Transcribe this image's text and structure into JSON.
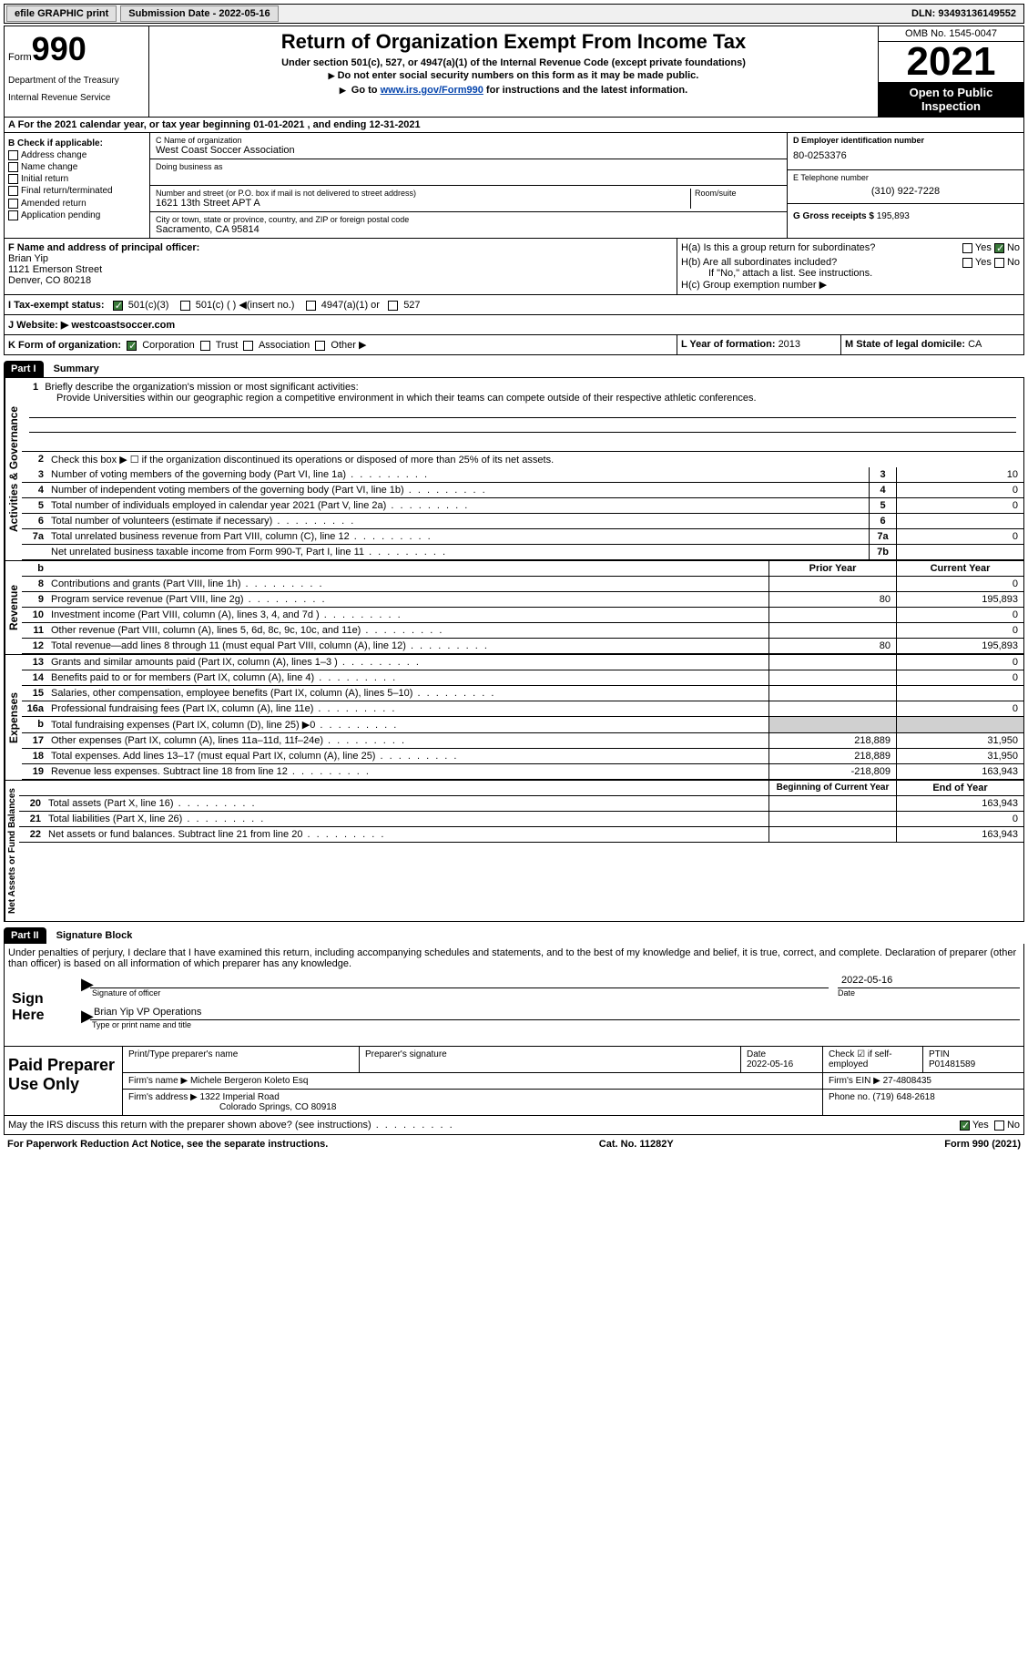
{
  "topbar": {
    "efile": "efile GRAPHIC print",
    "submission_label": "Submission Date - ",
    "submission_date": "2022-05-16",
    "dln_label": "DLN: ",
    "dln": "93493136149552"
  },
  "header": {
    "form_prefix": "Form",
    "form_number": "990",
    "dept": "Department of the Treasury",
    "irs": "Internal Revenue Service",
    "title": "Return of Organization Exempt From Income Tax",
    "subtitle": "Under section 501(c), 527, or 4947(a)(1) of the Internal Revenue Code (except private foundations)",
    "note1": "Do not enter social security numbers on this form as it may be made public.",
    "note2_prefix": "Go to ",
    "note2_link": "www.irs.gov/Form990",
    "note2_suffix": " for instructions and the latest information.",
    "omb": "OMB No. 1545-0047",
    "year": "2021",
    "open_public": "Open to Public Inspection"
  },
  "row_a": {
    "prefix": "A For the 2021 calendar year, or tax year beginning ",
    "begin": "01-01-2021",
    "mid": " , and ending ",
    "end": "12-31-2021"
  },
  "col_b": {
    "header": "B Check if applicable:",
    "opts": [
      "Address change",
      "Name change",
      "Initial return",
      "Final return/terminated",
      "Amended return",
      "Application pending"
    ]
  },
  "col_c": {
    "name_label": "C Name of organization",
    "name": "West Coast Soccer Association",
    "dba_label": "Doing business as",
    "dba": "",
    "street_label": "Number and street (or P.O. box if mail is not delivered to street address)",
    "street": "1621 13th Street APT A",
    "room_label": "Room/suite",
    "city_label": "City or town, state or province, country, and ZIP or foreign postal code",
    "city": "Sacramento, CA  95814"
  },
  "col_d": {
    "ein_label": "D Employer identification number",
    "ein": "80-0253376",
    "phone_label": "E Telephone number",
    "phone": "(310) 922-7228",
    "gross_label": "G Gross receipts $ ",
    "gross": "195,893"
  },
  "col_f": {
    "label": "F  Name and address of principal officer:",
    "name": "Brian Yip",
    "street": "1121 Emerson Street",
    "city": "Denver, CO  80218"
  },
  "col_h": {
    "ha_label": "H(a)  Is this a group return for subordinates?",
    "hb_label": "H(b)  Are all subordinates included?",
    "hb_note": "If \"No,\" attach a list. See instructions.",
    "hc_label": "H(c)  Group exemption number ",
    "yes": "Yes",
    "no": "No"
  },
  "row_i": {
    "label": "I  Tax-exempt status:",
    "opt1": "501(c)(3)",
    "opt2": "501(c) (  ) ",
    "opt2_note": "(insert no.)",
    "opt3": "4947(a)(1) or",
    "opt4": "527"
  },
  "row_j": {
    "label": "J  Website: ",
    "value": "westcoastsoccer.com"
  },
  "row_k": {
    "label": "K Form of organization:",
    "opts": [
      "Corporation",
      "Trust",
      "Association",
      "Other"
    ]
  },
  "row_l": {
    "l_label": "L Year of formation: ",
    "l_val": "2013",
    "m_label": "M State of legal domicile: ",
    "m_val": "CA"
  },
  "part1": {
    "header": "Part I",
    "title": "Summary",
    "vert1": "Activities & Governance",
    "vert2": "Revenue",
    "vert3": "Expenses",
    "vert4": "Net Assets or Fund Balances",
    "line1_label": "Briefly describe the organization's mission or most significant activities:",
    "line1_text": "Provide Universities within our geographic region a competitive environment in which their teams can compete outside of their respective athletic conferences.",
    "line2": "Check this box ▶ ☐  if the organization discontinued its operations or disposed of more than 25% of its net assets.",
    "rows": [
      {
        "n": "3",
        "label": "Number of voting members of the governing body (Part VI, line 1a)",
        "box": "3",
        "val": "10"
      },
      {
        "n": "4",
        "label": "Number of independent voting members of the governing body (Part VI, line 1b)",
        "box": "4",
        "val": "0"
      },
      {
        "n": "5",
        "label": "Total number of individuals employed in calendar year 2021 (Part V, line 2a)",
        "box": "5",
        "val": "0"
      },
      {
        "n": "6",
        "label": "Total number of volunteers (estimate if necessary)",
        "box": "6",
        "val": ""
      },
      {
        "n": "7a",
        "label": "Total unrelated business revenue from Part VIII, column (C), line 12",
        "box": "7a",
        "val": "0"
      },
      {
        "n": "",
        "label": "Net unrelated business taxable income from Form 990-T, Part I, line 11",
        "box": "7b",
        "val": ""
      }
    ],
    "col_prior": "Prior Year",
    "col_current": "Current Year",
    "rev_rows": [
      {
        "n": "8",
        "label": "Contributions and grants (Part VIII, line 1h)",
        "prior": "",
        "curr": "0"
      },
      {
        "n": "9",
        "label": "Program service revenue (Part VIII, line 2g)",
        "prior": "80",
        "curr": "195,893"
      },
      {
        "n": "10",
        "label": "Investment income (Part VIII, column (A), lines 3, 4, and 7d )",
        "prior": "",
        "curr": "0"
      },
      {
        "n": "11",
        "label": "Other revenue (Part VIII, column (A), lines 5, 6d, 8c, 9c, 10c, and 11e)",
        "prior": "",
        "curr": "0"
      },
      {
        "n": "12",
        "label": "Total revenue—add lines 8 through 11 (must equal Part VIII, column (A), line 12)",
        "prior": "80",
        "curr": "195,893"
      }
    ],
    "exp_rows": [
      {
        "n": "13",
        "label": "Grants and similar amounts paid (Part IX, column (A), lines 1–3 )",
        "prior": "",
        "curr": "0"
      },
      {
        "n": "14",
        "label": "Benefits paid to or for members (Part IX, column (A), line 4)",
        "prior": "",
        "curr": "0"
      },
      {
        "n": "15",
        "label": "Salaries, other compensation, employee benefits (Part IX, column (A), lines 5–10)",
        "prior": "",
        "curr": ""
      },
      {
        "n": "16a",
        "label": "Professional fundraising fees (Part IX, column (A), line 11e)",
        "prior": "",
        "curr": "0"
      },
      {
        "n": "b",
        "label": "Total fundraising expenses (Part IX, column (D), line 25) ▶0",
        "prior": "",
        "curr": "",
        "shaded": true
      },
      {
        "n": "17",
        "label": "Other expenses (Part IX, column (A), lines 11a–11d, 11f–24e)",
        "prior": "218,889",
        "curr": "31,950"
      },
      {
        "n": "18",
        "label": "Total expenses. Add lines 13–17 (must equal Part IX, column (A), line 25)",
        "prior": "218,889",
        "curr": "31,950"
      },
      {
        "n": "19",
        "label": "Revenue less expenses. Subtract line 18 from line 12",
        "prior": "-218,809",
        "curr": "163,943"
      }
    ],
    "col_begin": "Beginning of Current Year",
    "col_end": "End of Year",
    "net_rows": [
      {
        "n": "20",
        "label": "Total assets (Part X, line 16)",
        "prior": "",
        "curr": "163,943"
      },
      {
        "n": "21",
        "label": "Total liabilities (Part X, line 26)",
        "prior": "",
        "curr": "0"
      },
      {
        "n": "22",
        "label": "Net assets or fund balances. Subtract line 21 from line 20",
        "prior": "",
        "curr": "163,943"
      }
    ]
  },
  "part2": {
    "header": "Part II",
    "title": "Signature Block",
    "declaration": "Under penalties of perjury, I declare that I have examined this return, including accompanying schedules and statements, and to the best of my knowledge and belief, it is true, correct, and complete. Declaration of preparer (other than officer) is based on all information of which preparer has any knowledge.",
    "sign_here": "Sign Here",
    "sig_officer": "Signature of officer",
    "sig_date": "2022-05-16",
    "date_label": "Date",
    "officer_name": "Brian Yip  VP Operations",
    "type_name": "Type or print name and title",
    "paid_prep": "Paid Preparer Use Only",
    "prep_name_label": "Print/Type preparer's name",
    "prep_sig_label": "Preparer's signature",
    "prep_date_label": "Date",
    "prep_date": "2022-05-16",
    "check_if": "Check ☑ if self-employed",
    "ptin_label": "PTIN",
    "ptin": "P01481589",
    "firm_name_label": "Firm's name    ▶ ",
    "firm_name": "Michele Bergeron Koleto Esq",
    "firm_ein_label": "Firm's EIN ▶ ",
    "firm_ein": "27-4808435",
    "firm_addr_label": "Firm's address ▶ ",
    "firm_addr": "1322 Imperial Road",
    "firm_city": "Colorado Springs, CO  80918",
    "firm_phone_label": "Phone no. ",
    "firm_phone": "(719) 648-2618",
    "discuss": "May the IRS discuss this return with the preparer shown above? (see instructions)",
    "yes": "Yes",
    "no": "No"
  },
  "footer": {
    "paperwork": "For Paperwork Reduction Act Notice, see the separate instructions.",
    "cat": "Cat. No. 11282Y",
    "form": "Form 990 (2021)"
  }
}
